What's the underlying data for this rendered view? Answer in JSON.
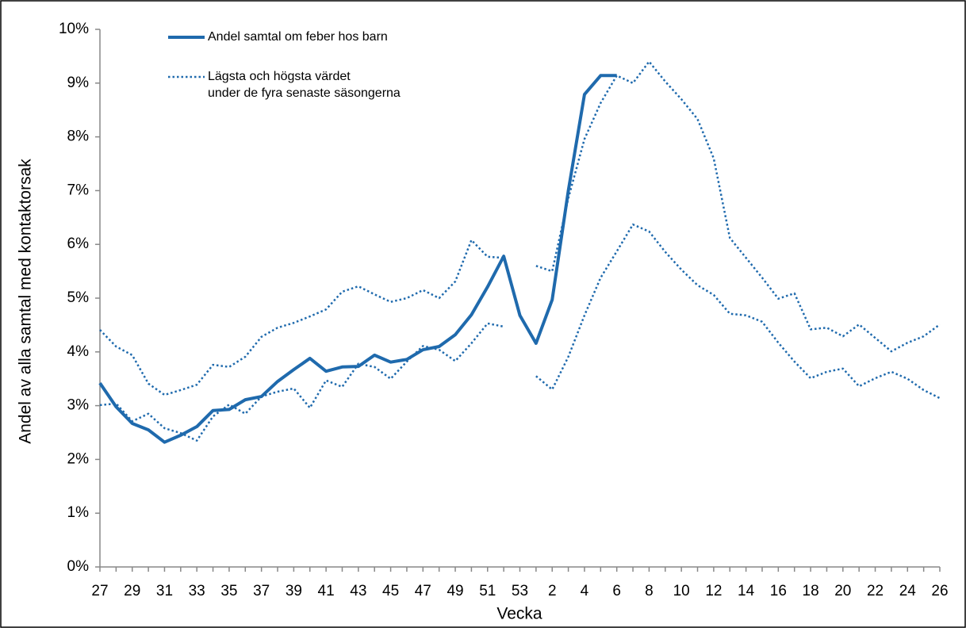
{
  "chart_data": {
    "type": "line",
    "x_label": "Vecka",
    "y_label": "Andel av alla samtal med kontaktorsak",
    "categories": [
      "27",
      null,
      "29",
      null,
      "31",
      null,
      "33",
      null,
      "35",
      null,
      "37",
      null,
      "39",
      null,
      "41",
      null,
      "43",
      null,
      "45",
      null,
      "47",
      null,
      "49",
      null,
      "51",
      null,
      "53",
      null,
      "2",
      null,
      "4",
      null,
      "6",
      null,
      "8",
      null,
      "10",
      null,
      "12",
      null,
      "14",
      null,
      "16",
      null,
      "18",
      null,
      "20",
      null,
      "22",
      null,
      "24",
      null,
      "26"
    ],
    "series": [
      {
        "name": "Andel samtal om feber hos barn",
        "color": "#1f6aad",
        "style": "solid",
        "values": [
          3.42,
          2.98,
          2.67,
          2.55,
          2.32,
          2.45,
          2.61,
          2.91,
          2.93,
          3.11,
          3.17,
          3.45,
          3.67,
          3.88,
          3.64,
          3.72,
          3.73,
          3.94,
          3.81,
          3.86,
          4.04,
          4.1,
          4.32,
          4.69,
          5.21,
          5.78,
          4.68,
          4.16,
          4.97,
          7.0,
          8.79,
          9.14,
          9.14,
          null,
          null,
          null,
          null,
          null,
          null,
          null,
          null,
          null,
          null,
          null,
          null,
          null,
          null,
          null,
          null,
          null,
          null,
          null,
          null
        ]
      },
      {
        "name": "Lägsta och högsta värdet\nunder de fyra senaste säsongerna",
        "color": "#1f6aad",
        "style": "dotted",
        "values": [
          4.41,
          4.1,
          3.94,
          3.41,
          3.2,
          3.29,
          3.39,
          3.76,
          3.72,
          3.91,
          4.28,
          4.45,
          4.54,
          4.66,
          4.79,
          5.12,
          5.22,
          5.07,
          4.93,
          5.0,
          5.15,
          5.0,
          5.31,
          6.08,
          5.77,
          5.75,
          null,
          5.6,
          5.5,
          6.86,
          7.96,
          8.63,
          9.14,
          9.0,
          9.4,
          9.03,
          8.7,
          8.33,
          7.6,
          6.12,
          5.75,
          5.38,
          4.99,
          5.09,
          4.42,
          4.45,
          4.29,
          4.51,
          4.26,
          4.01,
          4.17,
          4.29,
          4.51
        ]
      },
      {
        "color": "#1f6aad",
        "style": "dotted",
        "values": [
          3.01,
          3.04,
          2.71,
          2.85,
          2.58,
          2.49,
          2.35,
          2.8,
          3.02,
          2.85,
          3.17,
          3.26,
          3.32,
          2.96,
          3.47,
          3.35,
          3.78,
          3.72,
          3.5,
          3.82,
          4.11,
          4.04,
          3.83,
          4.16,
          4.53,
          4.47,
          null,
          3.55,
          3.3,
          3.91,
          4.68,
          5.38,
          5.87,
          6.37,
          6.24,
          5.86,
          5.53,
          5.24,
          5.06,
          4.71,
          4.68,
          4.56,
          4.17,
          3.82,
          3.51,
          3.63,
          3.69,
          3.36,
          3.51,
          3.63,
          3.5,
          3.29,
          3.14
        ]
      }
    ],
    "ylim": [
      0,
      10
    ],
    "yticks": [
      {
        "value": 0,
        "label": "0%"
      },
      {
        "value": 1,
        "label": "1%"
      },
      {
        "value": 2,
        "label": "2%"
      },
      {
        "value": 3,
        "label": "3%"
      },
      {
        "value": 4,
        "label": "4%"
      },
      {
        "value": 5,
        "label": "5%"
      },
      {
        "value": 6,
        "label": "6%"
      },
      {
        "value": 7,
        "label": "7%"
      },
      {
        "value": 8,
        "label": "8%"
      },
      {
        "value": 9,
        "label": "9%"
      },
      {
        "value": 10,
        "label": "10%"
      }
    ],
    "grid": false
  }
}
